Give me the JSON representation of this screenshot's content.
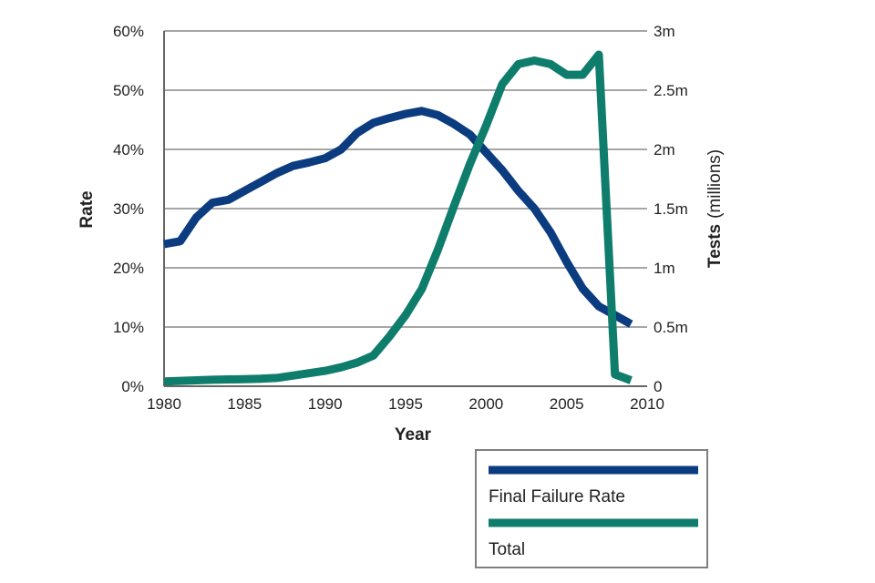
{
  "chart_data": {
    "type": "line",
    "xlabel": "Year",
    "ylabel_left": "Rate",
    "ylabel_right": {
      "main": "Tests",
      "unit": "(millions)"
    },
    "xlim": [
      1980,
      2010
    ],
    "ylim_left": [
      0,
      60
    ],
    "ylim_right": [
      0,
      3
    ],
    "grid": true,
    "legend_position": "below",
    "x_ticks": [
      {
        "value": 1980,
        "label": "1980"
      },
      {
        "value": 1985,
        "label": "1985"
      },
      {
        "value": 1990,
        "label": "1990"
      },
      {
        "value": 1995,
        "label": "1995"
      },
      {
        "value": 2000,
        "label": "2000"
      },
      {
        "value": 2005,
        "label": "2005"
      },
      {
        "value": 2010,
        "label": "2010"
      }
    ],
    "y_left_ticks": [
      {
        "value": 0,
        "label": "0%"
      },
      {
        "value": 10,
        "label": "10%"
      },
      {
        "value": 20,
        "label": "20%"
      },
      {
        "value": 30,
        "label": "30%"
      },
      {
        "value": 40,
        "label": "40%"
      },
      {
        "value": 50,
        "label": "50%"
      },
      {
        "value": 60,
        "label": "60%"
      }
    ],
    "y_right_ticks": [
      {
        "value": 0,
        "label": "0"
      },
      {
        "value": 0.5,
        "label": "0.5m"
      },
      {
        "value": 1,
        "label": "1m"
      },
      {
        "value": 1.5,
        "label": "1.5m"
      },
      {
        "value": 2,
        "label": "2m"
      },
      {
        "value": 2.5,
        "label": "2.5m"
      },
      {
        "value": 3,
        "label": "3m"
      }
    ],
    "series": [
      {
        "name": "Final Failure Rate",
        "axis": "left",
        "color": "#0b3c80",
        "x": [
          1980,
          1981,
          1982,
          1983,
          1984,
          1985,
          1986,
          1987,
          1988,
          1989,
          1990,
          1991,
          1992,
          1993,
          1994,
          1995,
          1996,
          1997,
          1998,
          1999,
          2000,
          2001,
          2002,
          2003,
          2004,
          2005,
          2006,
          2007,
          2008,
          2009
        ],
        "values": [
          24,
          24.5,
          28.5,
          31,
          31.5,
          33,
          34.5,
          36,
          37.2,
          37.8,
          38.5,
          40,
          42.8,
          44.5,
          45.3,
          46,
          46.5,
          45.8,
          44.3,
          42.5,
          39.5,
          36.5,
          33,
          30,
          26,
          21,
          16.5,
          13.5,
          12,
          10.5
        ]
      },
      {
        "name": "Total",
        "axis": "right",
        "color": "#0f7d6b",
        "x": [
          1980,
          1981,
          1982,
          1983,
          1984,
          1985,
          1986,
          1987,
          1988,
          1989,
          1990,
          1991,
          1992,
          1993,
          1994,
          1995,
          1996,
          1997,
          1998,
          1999,
          2000,
          2001,
          2002,
          2003,
          2004,
          2005,
          2006,
          2007,
          2008,
          2009
        ],
        "values": [
          0.04,
          0.045,
          0.05,
          0.055,
          0.058,
          0.06,
          0.063,
          0.07,
          0.09,
          0.11,
          0.13,
          0.16,
          0.2,
          0.26,
          0.42,
          0.6,
          0.82,
          1.15,
          1.52,
          1.88,
          2.2,
          2.55,
          2.72,
          2.75,
          2.72,
          2.63,
          2.63,
          2.8,
          0.1,
          0.05
        ]
      }
    ]
  }
}
